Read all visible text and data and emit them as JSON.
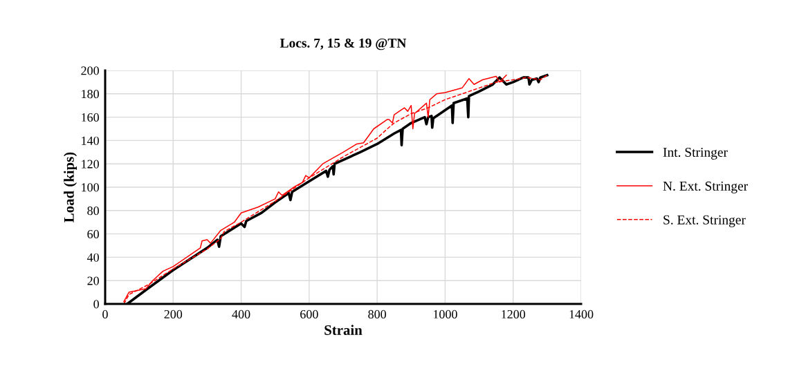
{
  "chart_data": {
    "type": "line",
    "title": "Locs. 7, 15 & 19 @TN",
    "xlabel": "Strain",
    "ylabel": "Load (kips)",
    "xlim": [
      0,
      1400
    ],
    "xticks": [
      0,
      200,
      400,
      600,
      800,
      1000,
      1200,
      1400
    ],
    "ylim": [
      0,
      200
    ],
    "yticks": [
      0,
      20,
      40,
      60,
      80,
      100,
      120,
      140,
      160,
      180,
      200
    ],
    "grid": true,
    "legend": "right",
    "series": [
      {
        "name": "Int. Stringer",
        "color": "#000000",
        "line_style": "solid",
        "x": [
          65,
          120,
          200,
          300,
          330,
          335,
          340,
          400,
          410,
          415,
          460,
          500,
          540,
          545,
          550,
          600,
          650,
          655,
          660,
          670,
          672,
          675,
          750,
          800,
          850,
          870,
          872,
          875,
          900,
          940,
          945,
          950,
          960,
          962,
          965,
          1000,
          1020,
          1022,
          1025,
          1065,
          1068,
          1070,
          1100,
          1140,
          1160,
          1180,
          1200,
          1230,
          1245,
          1248,
          1255,
          1270,
          1275,
          1280,
          1300
        ],
        "values": [
          0,
          12,
          29,
          48,
          55,
          49,
          58,
          69,
          66,
          71,
          78,
          87,
          95,
          89,
          96,
          105,
          114,
          109,
          115,
          118,
          111,
          120,
          130,
          137,
          146,
          149,
          136,
          150,
          155,
          160,
          154,
          160,
          161,
          151,
          159,
          166,
          170,
          155,
          172,
          176,
          160,
          178,
          182,
          188,
          194,
          188,
          190,
          194,
          194,
          188,
          192,
          193,
          190,
          194,
          196
        ]
      },
      {
        "name": "N. Ext. Stringer",
        "color": "#ff0000",
        "line_style": "solid",
        "x": [
          55,
          70,
          120,
          140,
          170,
          200,
          280,
          285,
          300,
          310,
          340,
          380,
          400,
          450,
          500,
          510,
          520,
          560,
          580,
          590,
          600,
          640,
          700,
          740,
          760,
          790,
          830,
          835,
          845,
          850,
          880,
          890,
          900,
          905,
          910,
          945,
          950,
          955,
          975,
          1000,
          1050,
          1070,
          1085,
          1110,
          1150,
          1160,
          1180
        ],
        "values": [
          2,
          10,
          13,
          20,
          28,
          32,
          48,
          54,
          55,
          52,
          63,
          70,
          78,
          83,
          90,
          96,
          93,
          101,
          104,
          110,
          108,
          120,
          130,
          137,
          138,
          150,
          158,
          158,
          155,
          162,
          168,
          165,
          170,
          150,
          163,
          172,
          160,
          175,
          180,
          181,
          185,
          193,
          188,
          192,
          195,
          190,
          196
        ]
      },
      {
        "name": "S. Ext. Stringer",
        "color": "#ff0000",
        "line_style": "dashed",
        "x": [
          55,
          70,
          130,
          200,
          300,
          340,
          350,
          400,
          450,
          500,
          600,
          700,
          800,
          830,
          850,
          900,
          950,
          1000,
          1050,
          1100,
          1150,
          1200,
          1240,
          1280,
          1300
        ],
        "values": [
          0,
          8,
          17,
          30,
          47,
          56,
          62,
          70,
          79,
          88,
          108,
          126,
          142,
          150,
          155,
          163,
          168,
          175,
          180,
          185,
          190,
          192,
          194,
          192,
          196
        ]
      }
    ]
  }
}
